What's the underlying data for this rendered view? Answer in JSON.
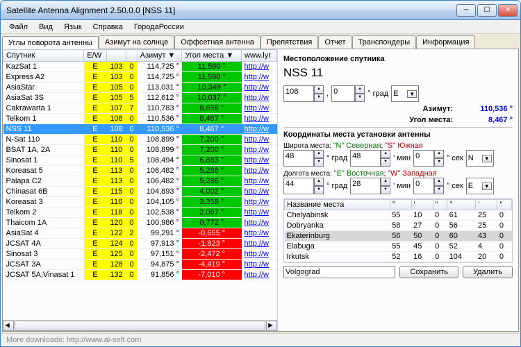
{
  "window": {
    "title": "Satellite Antenna Alignment 2.50.0.0 [NSS 11]"
  },
  "menu": [
    "Файл",
    "Вид",
    "Язык",
    "Справка",
    "ГородаРоссии"
  ],
  "tabs": [
    "Углы поворота антенны",
    "Азимут на солнце",
    "Оффсетная антенна",
    "Препятствия",
    "Отчет",
    "Транспондеры",
    "Информация"
  ],
  "cols": [
    "Спутник",
    "E/W",
    "",
    "",
    "Азимут ▼",
    "Угол места ▼",
    "www.lyr"
  ],
  "rows": [
    {
      "sat": "KazSat 1",
      "ew": "E",
      "d1": "103",
      "d2": "0",
      "az": "114,725 °",
      "el": "11,590 °",
      "elc": "green",
      "link": "http://w"
    },
    {
      "sat": "Express A2",
      "ew": "E",
      "d1": "103",
      "d2": "0",
      "az": "114,725 °",
      "el": "11,590 °",
      "elc": "green",
      "link": "http://w"
    },
    {
      "sat": "AsiaStar",
      "ew": "E",
      "d1": "105",
      "d2": "0",
      "az": "113,031 °",
      "el": "10,349 °",
      "elc": "green",
      "link": "http://w"
    },
    {
      "sat": "AsiaSat 3S",
      "ew": "E",
      "d1": "105",
      "d2": "5",
      "az": "112,612 °",
      "el": "10,037 °",
      "elc": "green",
      "link": "http://w"
    },
    {
      "sat": "Cakrawarta 1",
      "ew": "E",
      "d1": "107",
      "d2": "7",
      "az": "110,783 °",
      "el": "8,656 °",
      "elc": "green",
      "link": "http://w"
    },
    {
      "sat": "Telkom 1",
      "ew": "E",
      "d1": "108",
      "d2": "0",
      "az": "110,536 °",
      "el": "8,467 °",
      "elc": "green",
      "link": "http://w"
    },
    {
      "sat": "NSS 11",
      "sel": true,
      "ew": "E",
      "d1": "108",
      "d2": "0",
      "az": "110,536 °",
      "el": "8,467 °",
      "elc": "green",
      "link": "http://w"
    },
    {
      "sat": "N-Sat 110",
      "ew": "E",
      "d1": "110",
      "d2": "0",
      "az": "108,899 °",
      "el": "7,200 °",
      "elc": "green",
      "link": "http://w"
    },
    {
      "sat": "BSAT 1A, 2A",
      "ew": "E",
      "d1": "110",
      "d2": "0",
      "az": "108,899 °",
      "el": "7,200 °",
      "elc": "green",
      "link": "http://w"
    },
    {
      "sat": "Sinosat 1",
      "ew": "E",
      "d1": "110",
      "d2": "5",
      "az": "108,494 °",
      "el": "6,883 °",
      "elc": "green",
      "link": "http://w"
    },
    {
      "sat": "Koreasat 5",
      "ew": "E",
      "d1": "113",
      "d2": "0",
      "az": "106,482 °",
      "el": "5,286 °",
      "elc": "green",
      "link": "http://w"
    },
    {
      "sat": "Palapa C2",
      "ew": "E",
      "d1": "113",
      "d2": "0",
      "az": "106,482 °",
      "el": "5,286 °",
      "elc": "green",
      "link": "http://w"
    },
    {
      "sat": "Chinasat 6B",
      "ew": "E",
      "d1": "115",
      "d2": "0",
      "az": "104,893 °",
      "el": "4,002 °",
      "elc": "green",
      "link": "http://w"
    },
    {
      "sat": "Koreasat 3",
      "ew": "E",
      "d1": "116",
      "d2": "0",
      "az": "104,105 °",
      "el": "3,358 °",
      "elc": "green",
      "link": "http://w"
    },
    {
      "sat": "Telkom 2",
      "ew": "E",
      "d1": "118",
      "d2": "0",
      "az": "102,538 °",
      "el": "2,067 °",
      "elc": "green",
      "link": "http://w"
    },
    {
      "sat": "Thaicom 1A",
      "ew": "E",
      "d1": "120",
      "d2": "0",
      "az": "100,986 °",
      "el": "0,772 °",
      "elc": "green",
      "link": "http://w"
    },
    {
      "sat": "AsiaSat 4",
      "ew": "E",
      "d1": "122",
      "d2": "2",
      "az": "99,291 °",
      "el": "-0,655 °",
      "elc": "red",
      "link": "http://w"
    },
    {
      "sat": "JCSAT 4A",
      "ew": "E",
      "d1": "124",
      "d2": "0",
      "az": "97,913 °",
      "el": "-1,823 °",
      "elc": "red",
      "link": "http://w"
    },
    {
      "sat": "Sinosat 3",
      "ew": "E",
      "d1": "125",
      "d2": "0",
      "az": "97,151 °",
      "el": "-2,472 °",
      "elc": "red",
      "link": "http://w"
    },
    {
      "sat": "JCSAT 3A",
      "ew": "E",
      "d1": "128",
      "d2": "0",
      "az": "94,875 °",
      "el": "-4,419 °",
      "elc": "red",
      "link": "http://w"
    },
    {
      "sat": "JCSAT 5A,Vinasat 1",
      "ew": "E",
      "d1": "132",
      "d2": "0",
      "az": "91,856 °",
      "el": "-7,010 °",
      "elc": "red",
      "link": "http://w"
    }
  ],
  "right": {
    "loc_title": "Местоположение спутника",
    "satname": "NSS 11",
    "deg1": "108",
    "deg2": "0",
    "degunit": "° град",
    "ew": "E",
    "az_label": "Азимут:",
    "az_val": "110,536 °",
    "el_label": "Угол места:",
    "el_val": "8,467 °",
    "coord_title": "Координаты места установки антенны",
    "lat_note": "Широта места: \"N\" Северная; \"S\" Южная",
    "lon_note": "Долгота места: \"E\" Восточная; \"W\" Западная",
    "lat_d": "48",
    "lat_m": "48",
    "lat_s": "0",
    "lat_hem": "N",
    "lon_d": "44",
    "lon_m": "28",
    "lon_s": "0",
    "lon_hem": "E",
    "unit_d": "° град",
    "unit_m": "' мин",
    "unit_s": "'' сек",
    "place_header": "Название места",
    "places": [
      {
        "n": "Chelyabinsk",
        "a": "55",
        "b": "10",
        "c": "0",
        "d": "61",
        "e": "25",
        "f": "0"
      },
      {
        "n": "Dobryanka",
        "a": "58",
        "b": "27",
        "c": "0",
        "d": "56",
        "e": "25",
        "f": "0"
      },
      {
        "n": "Ekaterinburg",
        "sel": true,
        "a": "56",
        "b": "50",
        "c": "0",
        "d": "60",
        "e": "43",
        "f": "0"
      },
      {
        "n": "Elabuga",
        "a": "55",
        "b": "45",
        "c": "0",
        "d": "52",
        "e": "4",
        "f": "0"
      },
      {
        "n": "Irkutsk",
        "a": "52",
        "b": "16",
        "c": "0",
        "d": "104",
        "e": "20",
        "f": "0"
      }
    ],
    "city_input": "Volgograd",
    "save": "Сохранить",
    "delete": "Удалить"
  },
  "status": "More downloads: http://www.al-soft.com"
}
